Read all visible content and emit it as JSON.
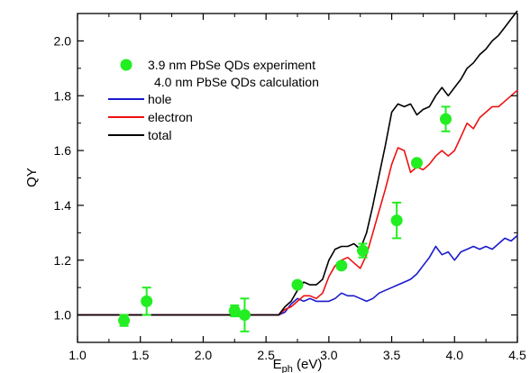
{
  "chart_data": {
    "type": "line",
    "title": "",
    "xlabel_main": "E",
    "xlabel_sub": "ph",
    "xlabel_unit": " (eV)",
    "ylabel": "QY",
    "xlim": [
      1.0,
      4.5
    ],
    "ylim": [
      0.9,
      2.1
    ],
    "x_ticks": [
      "1.0",
      "1.5",
      "2.0",
      "2.5",
      "3.0",
      "3.5",
      "4.0",
      "4.5"
    ],
    "y_ticks": [
      "1.0",
      "1.2",
      "1.4",
      "1.6",
      "1.8",
      "2.0"
    ],
    "grid": false,
    "legend_position": "top-left",
    "colors": {
      "hole": "#1a1acc",
      "electron": "#ee1111",
      "total": "#000000",
      "experiment": "#22ee22"
    },
    "experiment": {
      "name": "3.9 nm PbSe QDs experiment",
      "points": [
        {
          "x": 1.37,
          "y": 0.98,
          "err": 0.02
        },
        {
          "x": 1.55,
          "y": 1.05,
          "err": 0.05
        },
        {
          "x": 2.25,
          "y": 1.015,
          "err": 0.02
        },
        {
          "x": 2.33,
          "y": 1.0,
          "err": 0.06
        },
        {
          "x": 2.75,
          "y": 1.11,
          "err": 0.01
        },
        {
          "x": 3.1,
          "y": 1.18,
          "err": 0.01
        },
        {
          "x": 3.27,
          "y": 1.235,
          "err": 0.025
        },
        {
          "x": 3.54,
          "y": 1.345,
          "err": 0.065
        },
        {
          "x": 3.7,
          "y": 1.555,
          "err": 0.01
        },
        {
          "x": 3.93,
          "y": 1.715,
          "err": 0.045
        }
      ]
    },
    "calculation_title": "4.0 nm PbSe QDs calculation",
    "series": [
      {
        "name": "hole",
        "key": "hole",
        "x": [
          1.0,
          2.6,
          2.65,
          2.7,
          2.75,
          2.8,
          2.85,
          2.9,
          2.95,
          3.0,
          3.05,
          3.1,
          3.15,
          3.2,
          3.25,
          3.3,
          3.35,
          3.4,
          3.45,
          3.5,
          3.55,
          3.6,
          3.65,
          3.7,
          3.75,
          3.8,
          3.85,
          3.9,
          3.95,
          4.0,
          4.05,
          4.1,
          4.15,
          4.2,
          4.25,
          4.3,
          4.35,
          4.4,
          4.45,
          4.5
        ],
        "y": [
          1.0,
          1.0,
          1.01,
          1.04,
          1.06,
          1.05,
          1.06,
          1.05,
          1.05,
          1.05,
          1.06,
          1.08,
          1.07,
          1.07,
          1.06,
          1.05,
          1.06,
          1.08,
          1.09,
          1.1,
          1.11,
          1.12,
          1.13,
          1.15,
          1.18,
          1.21,
          1.25,
          1.22,
          1.23,
          1.2,
          1.23,
          1.24,
          1.25,
          1.24,
          1.25,
          1.24,
          1.26,
          1.28,
          1.27,
          1.29
        ]
      },
      {
        "name": "electron",
        "key": "electron",
        "x": [
          1.0,
          2.6,
          2.65,
          2.7,
          2.75,
          2.8,
          2.85,
          2.9,
          2.95,
          3.0,
          3.05,
          3.1,
          3.15,
          3.2,
          3.25,
          3.3,
          3.35,
          3.4,
          3.45,
          3.5,
          3.55,
          3.6,
          3.65,
          3.7,
          3.75,
          3.8,
          3.85,
          3.9,
          3.95,
          4.0,
          4.05,
          4.1,
          4.15,
          4.2,
          4.25,
          4.3,
          4.35,
          4.4,
          4.45,
          4.5
        ],
        "y": [
          1.0,
          1.0,
          1.02,
          1.03,
          1.05,
          1.07,
          1.07,
          1.06,
          1.08,
          1.14,
          1.18,
          1.2,
          1.21,
          1.19,
          1.17,
          1.22,
          1.3,
          1.38,
          1.46,
          1.55,
          1.61,
          1.6,
          1.52,
          1.54,
          1.53,
          1.55,
          1.58,
          1.6,
          1.58,
          1.6,
          1.65,
          1.7,
          1.68,
          1.72,
          1.74,
          1.76,
          1.76,
          1.78,
          1.8,
          1.82
        ]
      },
      {
        "name": "total",
        "key": "total",
        "x": [
          1.0,
          2.6,
          2.65,
          2.7,
          2.75,
          2.8,
          2.85,
          2.9,
          2.95,
          3.0,
          3.05,
          3.1,
          3.15,
          3.2,
          3.25,
          3.3,
          3.35,
          3.4,
          3.45,
          3.5,
          3.55,
          3.6,
          3.65,
          3.7,
          3.75,
          3.8,
          3.85,
          3.9,
          3.95,
          4.0,
          4.05,
          4.1,
          4.15,
          4.2,
          4.25,
          4.3,
          4.35,
          4.4,
          4.45,
          4.5
        ],
        "y": [
          1.0,
          1.0,
          1.03,
          1.05,
          1.09,
          1.12,
          1.11,
          1.11,
          1.13,
          1.2,
          1.24,
          1.25,
          1.25,
          1.26,
          1.24,
          1.3,
          1.4,
          1.51,
          1.62,
          1.74,
          1.77,
          1.76,
          1.77,
          1.73,
          1.75,
          1.76,
          1.8,
          1.83,
          1.8,
          1.83,
          1.86,
          1.9,
          1.92,
          1.95,
          1.97,
          2.0,
          2.02,
          2.05,
          2.08,
          2.11
        ]
      }
    ]
  }
}
